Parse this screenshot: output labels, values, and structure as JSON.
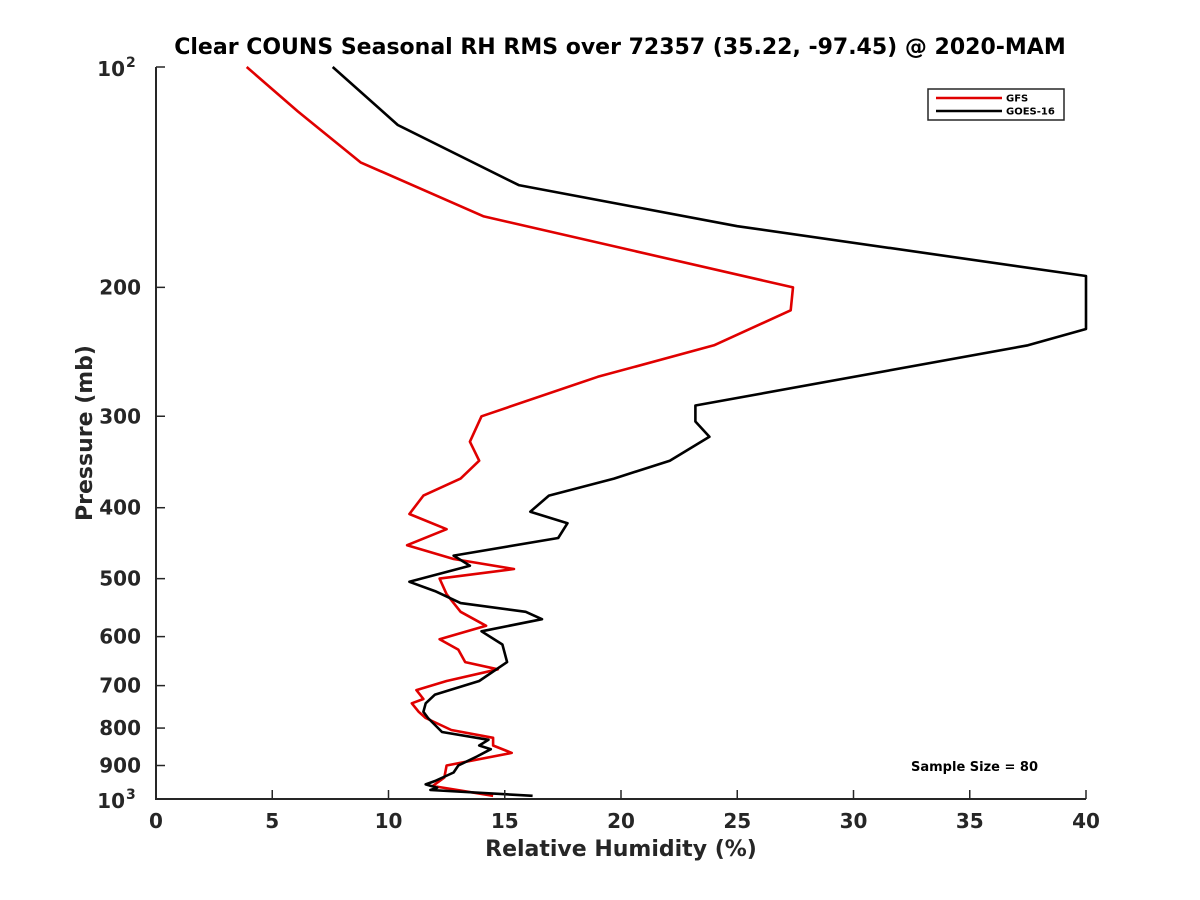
{
  "chart_data": {
    "type": "line",
    "title": "Clear COUNS Seasonal RH RMS over 72357 (35.22, -97.45) @ 2020-MAM",
    "xlabel": "Relative Humidity (%)",
    "ylabel": "Pressure (mb)",
    "xlim": [
      0,
      40
    ],
    "ylim": [
      100,
      1000
    ],
    "yscale": "log",
    "y_reversed": true,
    "grid": false,
    "x_ticks": [
      0,
      5,
      10,
      15,
      20,
      25,
      30,
      35,
      40
    ],
    "x_tick_labels": [
      "0",
      "5",
      "10",
      "15",
      "20",
      "25",
      "30",
      "35",
      "40"
    ],
    "y_ticks": [
      100,
      200,
      300,
      400,
      500,
      600,
      700,
      800,
      900,
      1000
    ],
    "y_tick_labels": [
      {
        "base": "10",
        "exp": "2"
      },
      {
        "text": "200"
      },
      {
        "text": "300"
      },
      {
        "text": "400"
      },
      {
        "text": "500"
      },
      {
        "text": "600"
      },
      {
        "text": "700"
      },
      {
        "text": "800"
      },
      {
        "text": "900"
      },
      {
        "base": "10",
        "exp": "3"
      }
    ],
    "legend": {
      "placement": "top-right",
      "entries": [
        "GFS",
        "GOES-16"
      ]
    },
    "annotation": "Sample Size = 80",
    "series": [
      {
        "name": "GFS",
        "color": "#e00000",
        "points": [
          [
            3.9,
            100
          ],
          [
            6.1,
            115
          ],
          [
            8.8,
            135
          ],
          [
            14.1,
            160
          ],
          [
            27.4,
            200
          ],
          [
            27.3,
            215
          ],
          [
            24.0,
            240
          ],
          [
            19.0,
            265
          ],
          [
            14.0,
            300
          ],
          [
            13.5,
            325
          ],
          [
            13.9,
            345
          ],
          [
            13.1,
            365
          ],
          [
            11.5,
            385
          ],
          [
            10.9,
            408
          ],
          [
            12.5,
            428
          ],
          [
            10.8,
            450
          ],
          [
            12.8,
            470
          ],
          [
            15.4,
            485
          ],
          [
            12.2,
            500
          ],
          [
            12.5,
            525
          ],
          [
            13.1,
            555
          ],
          [
            14.2,
            580
          ],
          [
            12.2,
            605
          ],
          [
            13.0,
            625
          ],
          [
            13.3,
            650
          ],
          [
            14.7,
            665
          ],
          [
            12.5,
            690
          ],
          [
            11.2,
            710
          ],
          [
            11.5,
            730
          ],
          [
            11.0,
            740
          ],
          [
            11.3,
            760
          ],
          [
            11.6,
            775
          ],
          [
            12.7,
            805
          ],
          [
            14.5,
            825
          ],
          [
            14.5,
            845
          ],
          [
            15.3,
            865
          ],
          [
            12.5,
            900
          ],
          [
            12.4,
            935
          ],
          [
            11.9,
            960
          ],
          [
            14.5,
            990
          ]
        ]
      },
      {
        "name": "GOES-16",
        "color": "#000000",
        "points": [
          [
            7.6,
            100
          ],
          [
            10.4,
            120
          ],
          [
            15.6,
            145
          ],
          [
            25.0,
            165
          ],
          [
            40.0,
            193
          ],
          [
            40.0,
            228
          ],
          [
            37.5,
            240
          ],
          [
            23.2,
            290
          ],
          [
            23.2,
            305
          ],
          [
            23.8,
            320
          ],
          [
            22.1,
            345
          ],
          [
            19.7,
            365
          ],
          [
            16.9,
            385
          ],
          [
            16.1,
            405
          ],
          [
            17.7,
            420
          ],
          [
            17.3,
            440
          ],
          [
            12.8,
            465
          ],
          [
            13.5,
            480
          ],
          [
            10.9,
            505
          ],
          [
            12.0,
            520
          ],
          [
            13.1,
            540
          ],
          [
            15.9,
            555
          ],
          [
            16.6,
            568
          ],
          [
            14.0,
            590
          ],
          [
            14.9,
            615
          ],
          [
            15.1,
            650
          ],
          [
            13.9,
            690
          ],
          [
            12.0,
            720
          ],
          [
            11.6,
            740
          ],
          [
            11.5,
            760
          ],
          [
            11.7,
            775
          ],
          [
            12.3,
            810
          ],
          [
            14.3,
            830
          ],
          [
            13.9,
            845
          ],
          [
            14.4,
            855
          ],
          [
            13.8,
            875
          ],
          [
            13.0,
            900
          ],
          [
            12.8,
            920
          ],
          [
            12.0,
            945
          ],
          [
            11.6,
            955
          ],
          [
            12.1,
            965
          ],
          [
            11.8,
            972
          ],
          [
            16.2,
            990
          ]
        ]
      }
    ]
  }
}
